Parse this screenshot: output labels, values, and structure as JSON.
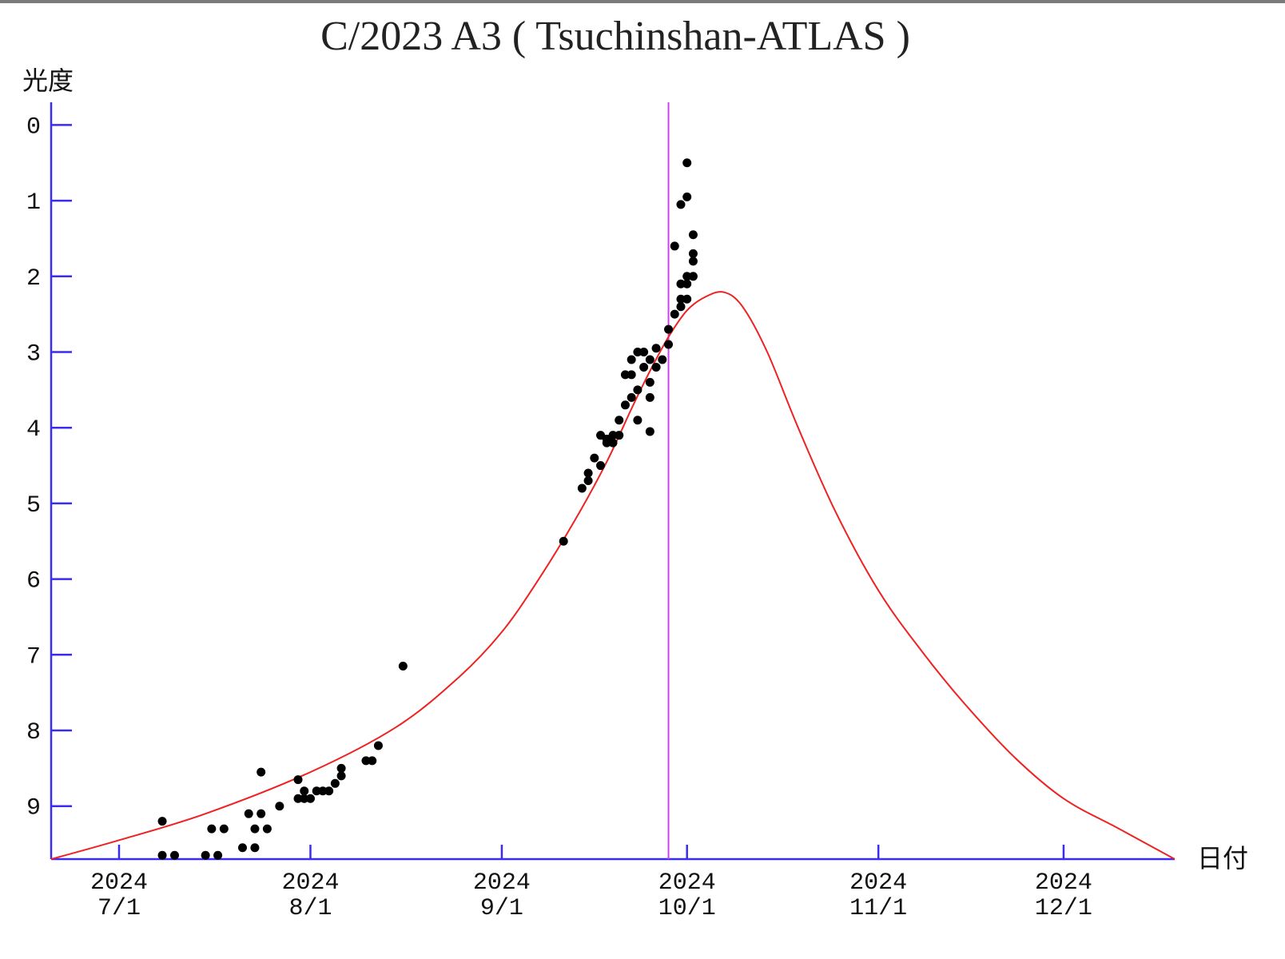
{
  "colors": {
    "axis": "#3a2cf0",
    "model_curve": "#ee2222",
    "current_date_line": "#d43ef0",
    "observations": "#000000",
    "top_border": "#7a7a7a"
  },
  "chart_data": {
    "type": "scatter",
    "title": "C/2023 A3 ( Tsuchinshan-ATLAS )",
    "ylabel": "光度",
    "xlabel": "日付",
    "x_axis_type": "date",
    "xlim": [
      "2024-06-20",
      "2024-12-19"
    ],
    "ylim": [
      9.7,
      -0.3
    ],
    "y_inverted": true,
    "y_ticks": [
      0,
      1,
      2,
      3,
      4,
      5,
      6,
      7,
      8,
      9
    ],
    "x_ticks": [
      {
        "date": "2024-07-01",
        "year": "2024",
        "md": "7/1"
      },
      {
        "date": "2024-08-01",
        "year": "2024",
        "md": "8/1"
      },
      {
        "date": "2024-09-01",
        "year": "2024",
        "md": "9/1"
      },
      {
        "date": "2024-10-01",
        "year": "2024",
        "md": "10/1"
      },
      {
        "date": "2024-11-01",
        "year": "2024",
        "md": "11/1"
      },
      {
        "date": "2024-12-01",
        "year": "2024",
        "md": "12/1"
      }
    ],
    "grid": false,
    "current_date": "2024-09-28",
    "model_curve": {
      "type": "line",
      "points": [
        [
          "2024-06-20",
          9.7
        ],
        [
          "2024-07-01",
          9.45
        ],
        [
          "2024-07-15",
          9.1
        ],
        [
          "2024-08-01",
          8.55
        ],
        [
          "2024-08-15",
          7.95
        ],
        [
          "2024-08-25",
          7.3
        ],
        [
          "2024-09-01",
          6.7
        ],
        [
          "2024-09-07",
          6.0
        ],
        [
          "2024-09-13",
          5.2
        ],
        [
          "2024-09-18",
          4.45
        ],
        [
          "2024-09-22",
          3.75
        ],
        [
          "2024-09-25",
          3.25
        ],
        [
          "2024-09-28",
          2.8
        ],
        [
          "2024-10-01",
          2.45
        ],
        [
          "2024-10-04",
          2.27
        ],
        [
          "2024-10-07",
          2.21
        ],
        [
          "2024-10-10",
          2.4
        ],
        [
          "2024-10-14",
          3.0
        ],
        [
          "2024-10-19",
          4.0
        ],
        [
          "2024-10-25",
          5.1
        ],
        [
          "2024-11-01",
          6.15
        ],
        [
          "2024-11-08",
          6.95
        ],
        [
          "2024-11-15",
          7.65
        ],
        [
          "2024-11-23",
          8.35
        ],
        [
          "2024-12-01",
          8.9
        ],
        [
          "2024-12-10",
          9.3
        ],
        [
          "2024-12-19",
          9.7
        ]
      ]
    },
    "observations": [
      [
        "2024-07-08",
        9.65
      ],
      [
        "2024-07-08",
        9.2
      ],
      [
        "2024-07-10",
        9.65
      ],
      [
        "2024-07-15",
        9.65
      ],
      [
        "2024-07-16",
        9.3
      ],
      [
        "2024-07-17",
        9.65
      ],
      [
        "2024-07-18",
        9.3
      ],
      [
        "2024-07-21",
        9.55
      ],
      [
        "2024-07-22",
        9.1
      ],
      [
        "2024-07-23",
        9.55
      ],
      [
        "2024-07-23",
        9.3
      ],
      [
        "2024-07-24",
        9.1
      ],
      [
        "2024-07-24",
        8.55
      ],
      [
        "2024-07-25",
        9.3
      ],
      [
        "2024-07-27",
        9.0
      ],
      [
        "2024-07-30",
        8.9
      ],
      [
        "2024-07-30",
        8.65
      ],
      [
        "2024-07-31",
        8.9
      ],
      [
        "2024-07-31",
        8.8
      ],
      [
        "2024-08-01",
        8.9
      ],
      [
        "2024-08-02",
        8.8
      ],
      [
        "2024-08-03",
        8.8
      ],
      [
        "2024-08-04",
        8.8
      ],
      [
        "2024-08-05",
        8.7
      ],
      [
        "2024-08-06",
        8.5
      ],
      [
        "2024-08-06",
        8.6
      ],
      [
        "2024-08-10",
        8.4
      ],
      [
        "2024-08-11",
        8.4
      ],
      [
        "2024-08-12",
        8.2
      ],
      [
        "2024-08-16",
        7.15
      ],
      [
        "2024-09-11",
        5.5
      ],
      [
        "2024-09-14",
        4.8
      ],
      [
        "2024-09-15",
        4.6
      ],
      [
        "2024-09-15",
        4.7
      ],
      [
        "2024-09-16",
        4.4
      ],
      [
        "2024-09-17",
        4.5
      ],
      [
        "2024-09-17",
        4.1
      ],
      [
        "2024-09-18",
        4.2
      ],
      [
        "2024-09-18",
        4.15
      ],
      [
        "2024-09-19",
        4.1
      ],
      [
        "2024-09-19",
        4.2
      ],
      [
        "2024-09-20",
        4.1
      ],
      [
        "2024-09-20",
        3.9
      ],
      [
        "2024-09-21",
        3.7
      ],
      [
        "2024-09-21",
        3.3
      ],
      [
        "2024-09-22",
        3.6
      ],
      [
        "2024-09-22",
        3.1
      ],
      [
        "2024-09-22",
        3.3
      ],
      [
        "2024-09-23",
        3.5
      ],
      [
        "2024-09-23",
        3.0
      ],
      [
        "2024-09-23",
        3.9
      ],
      [
        "2024-09-24",
        3.2
      ],
      [
        "2024-09-24",
        3.0
      ],
      [
        "2024-09-25",
        3.1
      ],
      [
        "2024-09-25",
        3.4
      ],
      [
        "2024-09-25",
        3.6
      ],
      [
        "2024-09-25",
        4.05
      ],
      [
        "2024-09-26",
        3.2
      ],
      [
        "2024-09-26",
        2.95
      ],
      [
        "2024-09-27",
        3.1
      ],
      [
        "2024-09-28",
        2.9
      ],
      [
        "2024-09-28",
        2.7
      ],
      [
        "2024-09-29",
        2.5
      ],
      [
        "2024-09-29",
        1.6
      ],
      [
        "2024-09-30",
        2.3
      ],
      [
        "2024-09-30",
        2.4
      ],
      [
        "2024-09-30",
        1.05
      ],
      [
        "2024-09-30",
        2.1
      ],
      [
        "2024-10-01",
        2.3
      ],
      [
        "2024-10-01",
        2.1
      ],
      [
        "2024-10-01",
        2.0
      ],
      [
        "2024-10-01",
        0.95
      ],
      [
        "2024-10-01",
        0.5
      ],
      [
        "2024-10-02",
        2.0
      ],
      [
        "2024-10-02",
        1.8
      ],
      [
        "2024-10-02",
        1.7
      ],
      [
        "2024-10-02",
        1.45
      ]
    ]
  }
}
